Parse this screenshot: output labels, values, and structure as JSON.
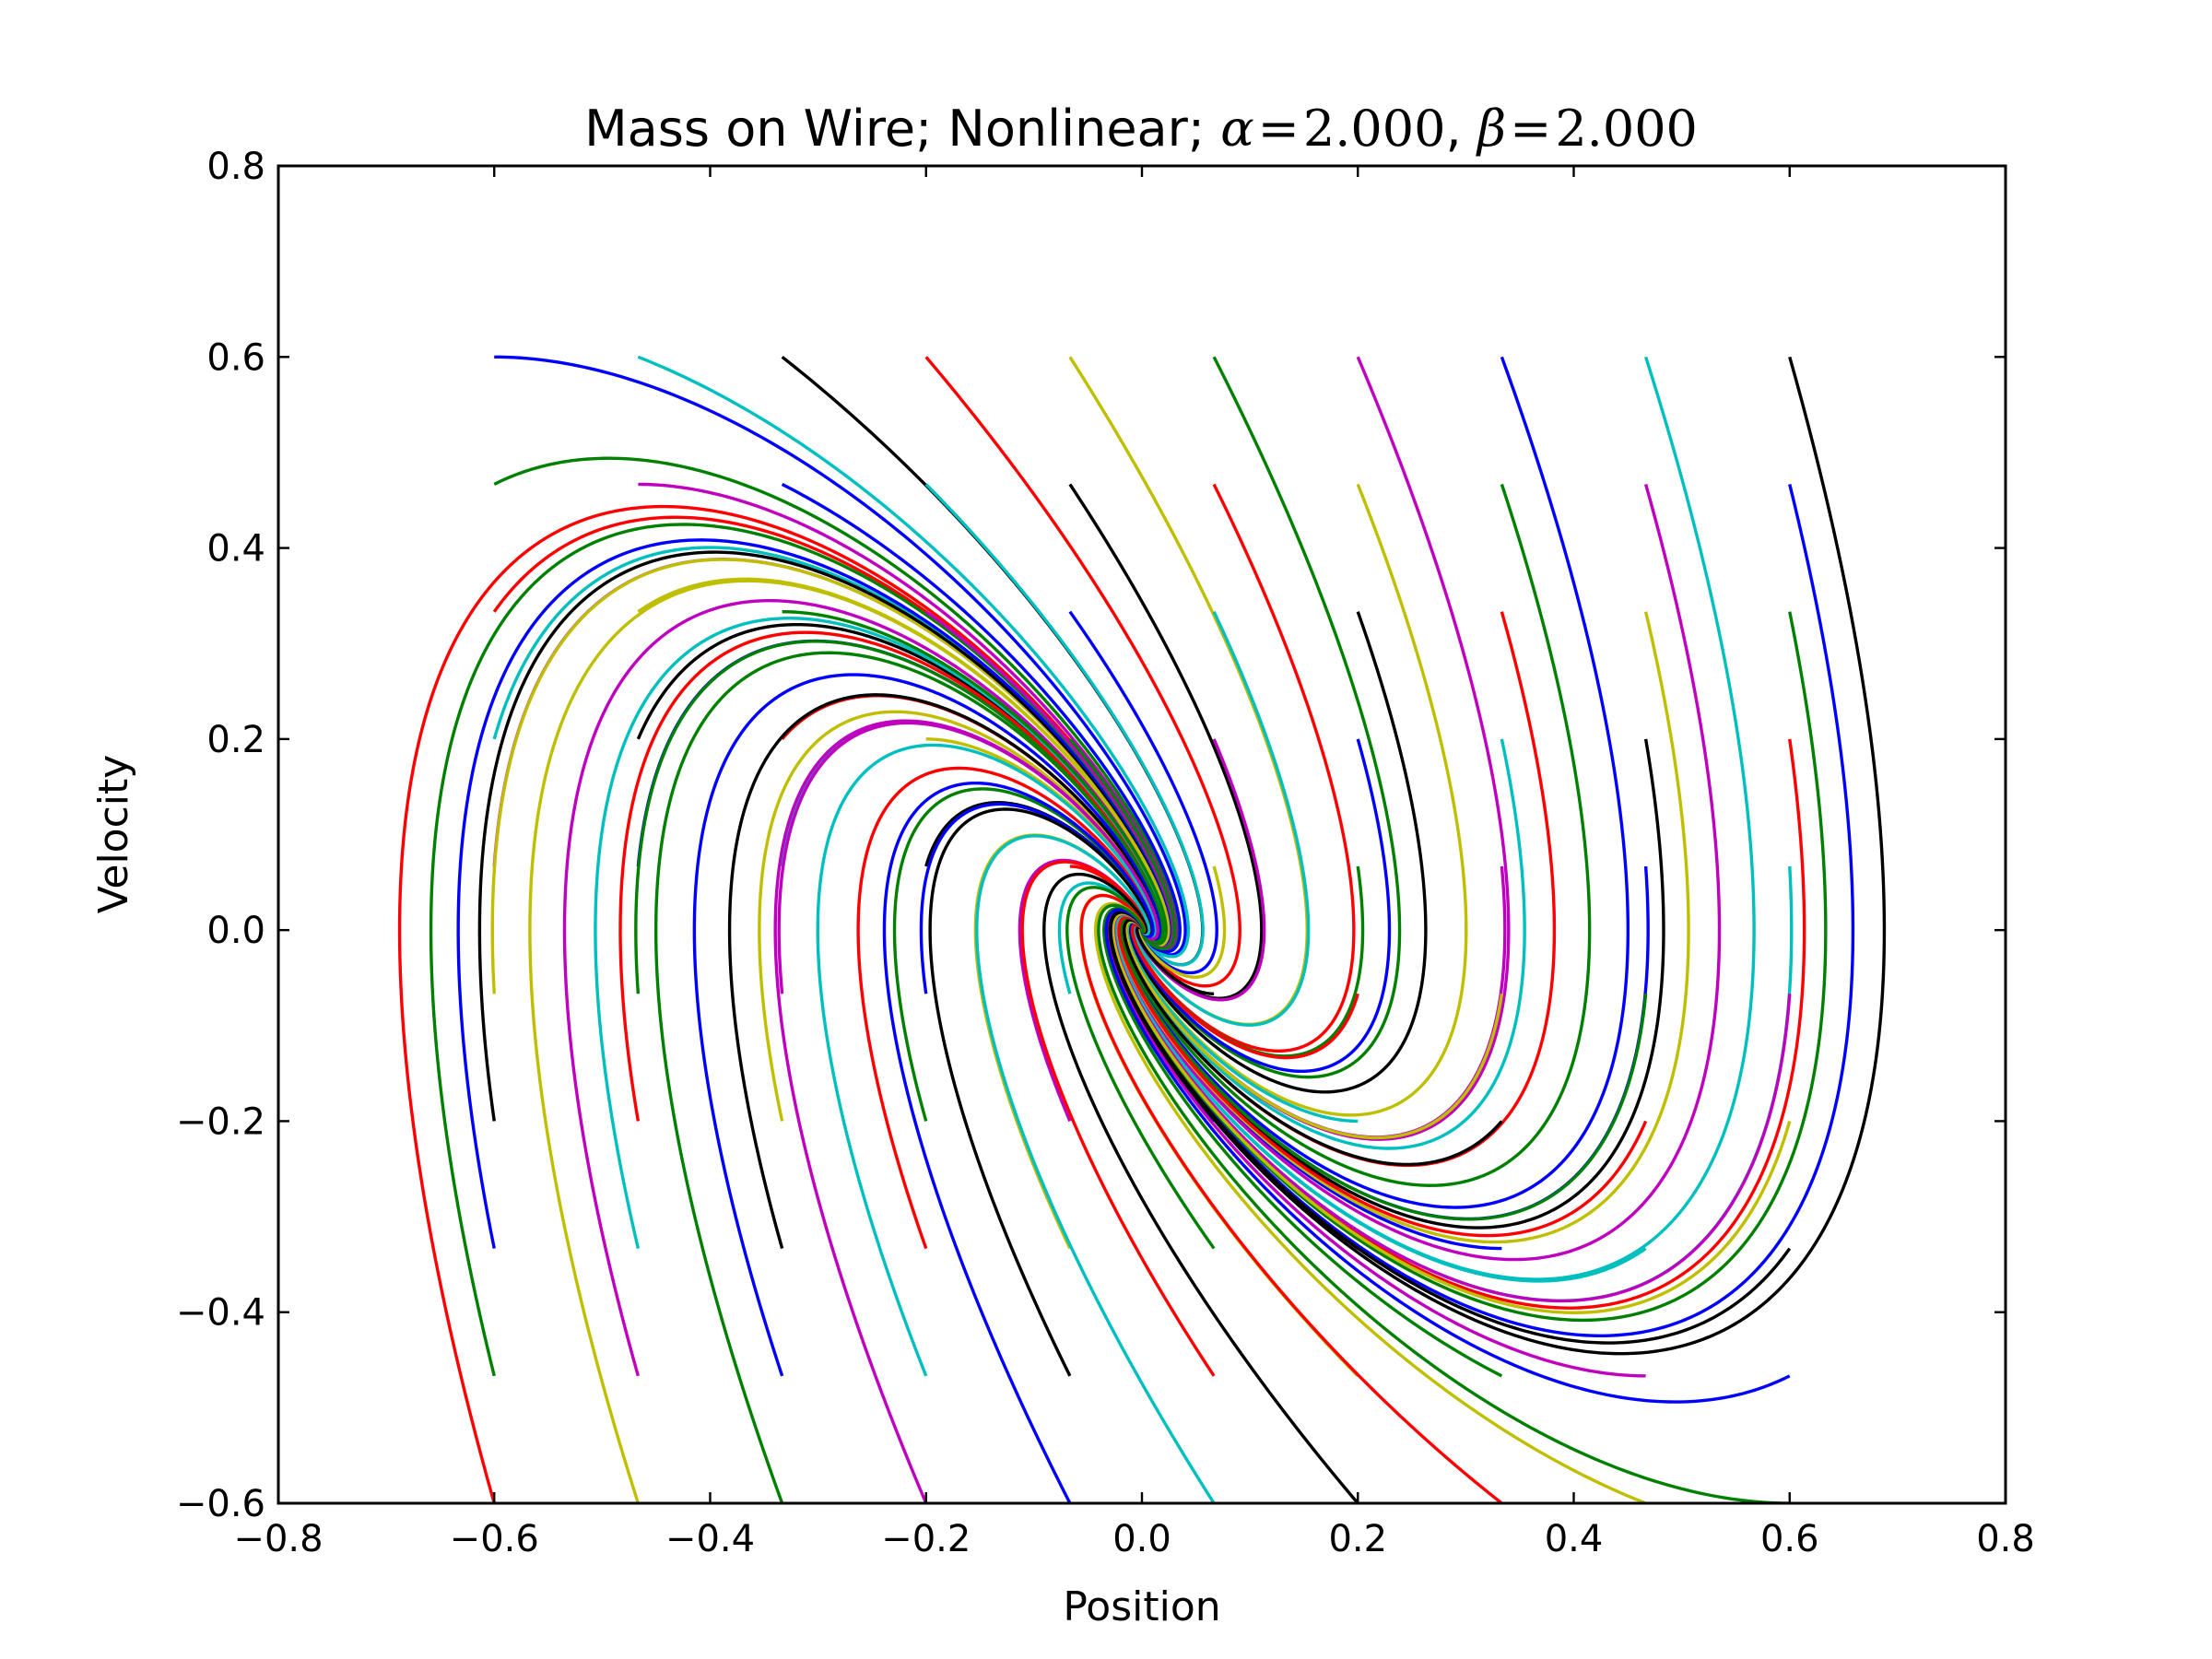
{
  "chart_data": {
    "type": "line",
    "title": {
      "prefix": "Mass on Wire; Nonlinear; ",
      "alpha_symbol": "α",
      "alpha_eq": "=",
      "alpha_value": "2.000",
      "separator": ", ",
      "beta_symbol": "β",
      "beta_eq": "=",
      "beta_value": "2.000"
    },
    "alpha": 2.0,
    "beta": 2.0,
    "xlabel": "Position",
    "ylabel": "Velocity",
    "xlim": [
      -0.8,
      0.8
    ],
    "ylim": [
      -0.6,
      0.8
    ],
    "xticks": [
      -0.8,
      -0.6,
      -0.4,
      -0.2,
      0.0,
      0.2,
      0.4,
      0.6,
      0.8
    ],
    "yticks": [
      -0.6,
      -0.4,
      -0.2,
      0.0,
      0.2,
      0.4,
      0.6,
      0.8
    ],
    "xtick_labels": [
      "−0.8",
      "−0.6",
      "−0.4",
      "−0.2",
      "0.0",
      "0.2",
      "0.4",
      "0.6",
      "0.8"
    ],
    "ytick_labels": [
      "−0.6",
      "−0.4",
      "−0.2",
      "0.0",
      "0.2",
      "0.4",
      "0.6",
      "0.8"
    ],
    "grid": false,
    "legend": "none",
    "dynamics": "x' = v; v' = -alpha*x - beta*v (integrated forward in time from each start point)",
    "initial_positions": [
      -0.6,
      -0.4667,
      -0.3333,
      -0.2,
      -0.0667,
      0.0667,
      0.2,
      0.3333,
      0.4667,
      0.6
    ],
    "initial_velocities": [
      0.6,
      0.4667,
      0.3333,
      0.2,
      0.0667,
      -0.0667,
      -0.2,
      -0.3333,
      -0.4667,
      -0.6
    ],
    "integration_time": 12,
    "colors": [
      "#0000ff",
      "#008000",
      "#ff0000",
      "#00bfbf",
      "#bf00bf",
      "#bfbf00",
      "#000000"
    ]
  }
}
